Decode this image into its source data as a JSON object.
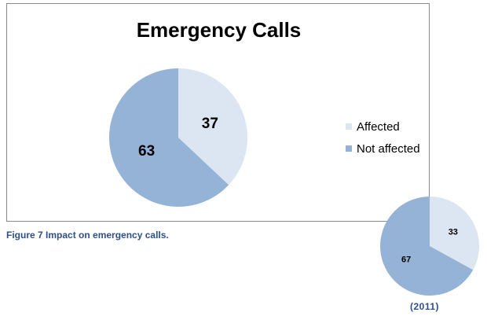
{
  "chart_data": [
    {
      "type": "pie",
      "title": "Emergency Calls",
      "categories": [
        "Affected",
        "Not affected"
      ],
      "values": [
        37,
        63
      ],
      "colors": [
        "#dce6f2",
        "#95b3d7"
      ],
      "legend_position": "right"
    },
    {
      "type": "pie",
      "title": "",
      "categories": [
        "Affected",
        "Not affected"
      ],
      "values": [
        33,
        67
      ],
      "colors": [
        "#dce6f2",
        "#95b3d7"
      ]
    }
  ],
  "caption": "Figure 7 Impact on emergency calls.",
  "inset_label": "(2011)",
  "colors": {
    "caption": "#2e4f8a",
    "frame_border": "#8a8a8a"
  }
}
